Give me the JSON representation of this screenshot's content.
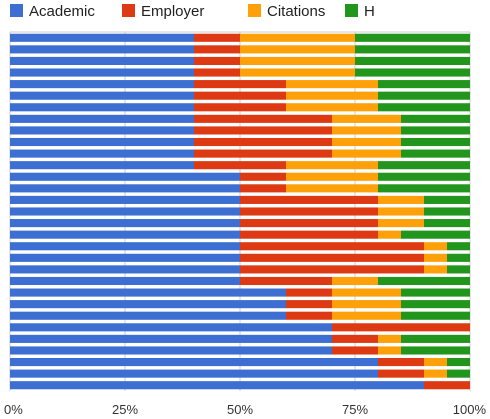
{
  "chart_data": {
    "type": "bar",
    "orientation": "horizontal",
    "stacking": "percent",
    "grid": true,
    "legend_position": "top-left",
    "title": "",
    "xlabel": "",
    "ylabel": "",
    "xlim": [
      0,
      100
    ],
    "x_ticks": [
      "0%",
      "25%",
      "50%",
      "75%",
      "100%"
    ],
    "x_tick_values": [
      0,
      25,
      50,
      75,
      100
    ],
    "series": [
      {
        "name": "Academic",
        "color": "#3c6fd1",
        "values": [
          40,
          40,
          40,
          40,
          40,
          40,
          40,
          40,
          40,
          40,
          40,
          40,
          50,
          50,
          50,
          50,
          50,
          50,
          50,
          50,
          50,
          50,
          60,
          60,
          60,
          70,
          70,
          70,
          80,
          80,
          90
        ]
      },
      {
        "name": "Employer",
        "color": "#dd3a14",
        "values": [
          10,
          10,
          10,
          10,
          20,
          20,
          20,
          30,
          30,
          30,
          30,
          20,
          10,
          10,
          30,
          30,
          30,
          30,
          40,
          40,
          40,
          20,
          10,
          10,
          10,
          30,
          10,
          10,
          10,
          10,
          10
        ]
      },
      {
        "name": "Citations",
        "color": "#fda00a",
        "values": [
          25,
          25,
          25,
          25,
          20,
          20,
          20,
          15,
          15,
          15,
          15,
          20,
          20,
          20,
          10,
          10,
          10,
          5,
          5,
          5,
          5,
          10,
          15,
          15,
          15,
          0,
          5,
          5,
          5,
          5,
          0
        ]
      },
      {
        "name": "H",
        "color": "#22951d",
        "values": [
          25,
          25,
          25,
          25,
          20,
          20,
          20,
          15,
          15,
          15,
          15,
          20,
          20,
          20,
          10,
          10,
          10,
          15,
          5,
          5,
          5,
          20,
          15,
          15,
          15,
          0,
          15,
          15,
          5,
          5,
          0
        ]
      }
    ]
  }
}
